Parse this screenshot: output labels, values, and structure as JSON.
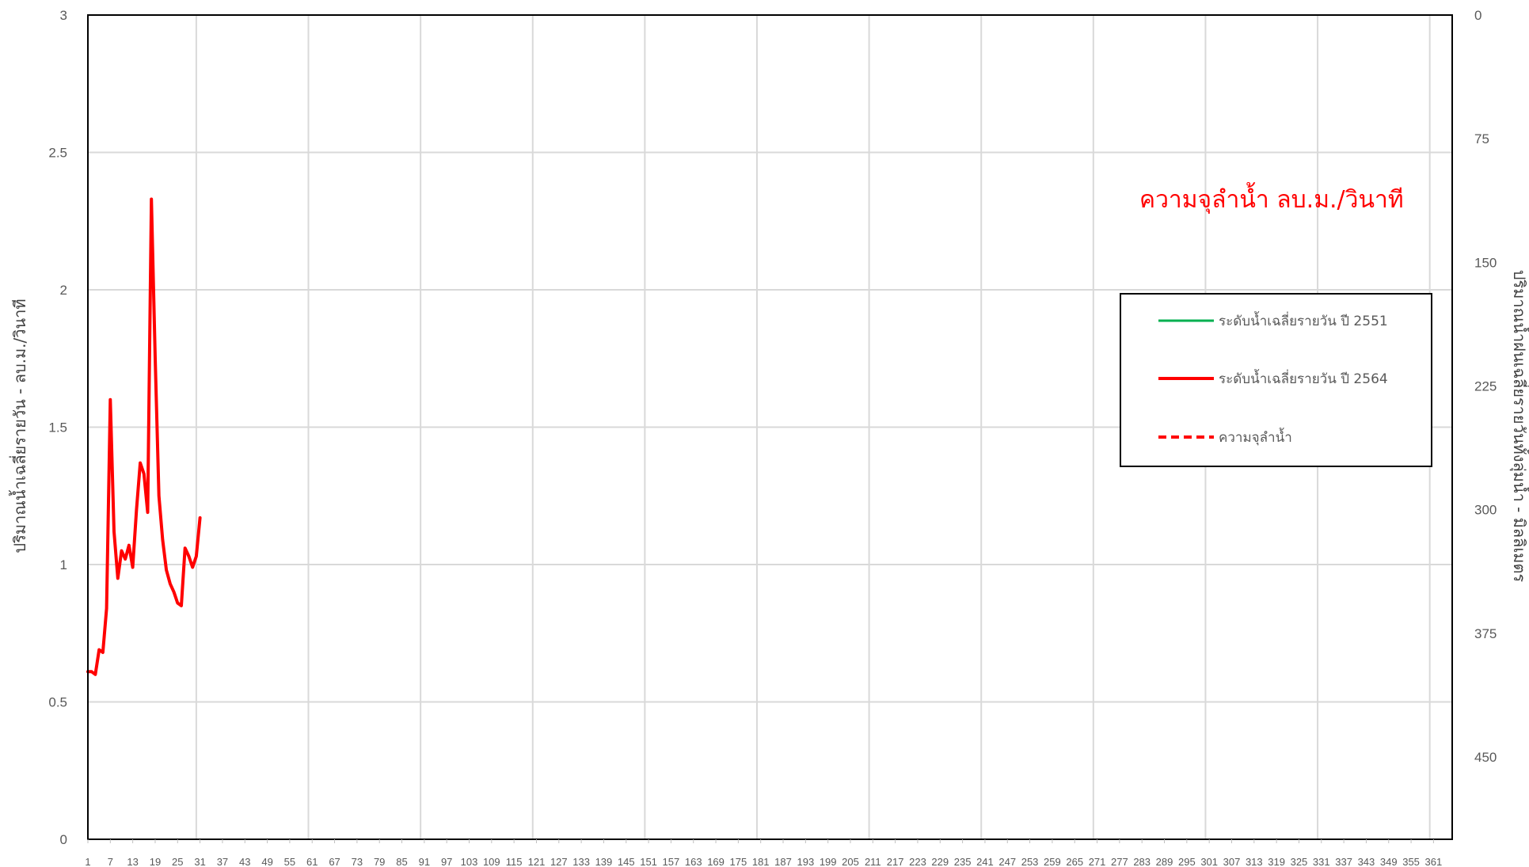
{
  "chart_data": {
    "type": "line",
    "annotation": "ความจุลำน้ำ  ลบ.ม./วินาที",
    "ylabel_left": "ปริมาณน้ำเฉลี่ยรายวัน - ลบ.ม./วินาที",
    "ylabel_right": "ปริมาณน้ำฝนเฉลี่ยรายวันทั้งลุ่มน้ำ - มิลลิเมตร",
    "ylim_left": [
      0,
      3
    ],
    "yticks_left": [
      "0",
      "0.5",
      "1",
      "1.5",
      "2",
      "2.5",
      "3"
    ],
    "ylim_right": [
      0,
      500
    ],
    "right_axis_reversed": true,
    "yticks_right": [
      "0",
      "75",
      "150",
      "225",
      "300",
      "375",
      "450"
    ],
    "xlim": [
      1,
      366
    ],
    "xticks": [
      "1",
      "7",
      "13",
      "19",
      "25",
      "31",
      "37",
      "43",
      "49",
      "55",
      "61",
      "67",
      "73",
      "79",
      "85",
      "91",
      "97",
      "103",
      "109",
      "115",
      "121",
      "127",
      "133",
      "139",
      "145",
      "151",
      "157",
      "163",
      "169",
      "175",
      "181",
      "187",
      "193",
      "199",
      "205",
      "211",
      "217",
      "223",
      "229",
      "235",
      "241",
      "247",
      "253",
      "259",
      "265",
      "271",
      "277",
      "283",
      "289",
      "295",
      "301",
      "307",
      "313",
      "319",
      "325",
      "331",
      "337",
      "343",
      "349",
      "355",
      "361"
    ],
    "grid": true,
    "legend_position": "right",
    "series": [
      {
        "name": "ระดับน้ำเฉลี่ยรายวัน ปี 2551",
        "color": "#00b050",
        "style": "solid",
        "x": [],
        "y": []
      },
      {
        "name": "ระดับน้ำเฉลี่ยรายวัน ปี 2564",
        "color": "#ff0000",
        "style": "solid",
        "x": [
          1,
          2,
          3,
          4,
          5,
          6,
          7,
          8,
          9,
          10,
          11,
          12,
          13,
          14,
          15,
          16,
          17,
          18,
          19,
          20,
          21,
          22,
          23,
          24,
          25,
          26,
          27,
          28,
          29,
          30,
          31
        ],
        "y": [
          0.61,
          0.61,
          0.6,
          0.69,
          0.68,
          0.84,
          1.6,
          1.12,
          0.95,
          1.05,
          1.02,
          1.07,
          0.99,
          1.2,
          1.37,
          1.33,
          1.19,
          2.33,
          1.75,
          1.25,
          1.09,
          0.98,
          0.93,
          0.9,
          0.86,
          0.85,
          1.06,
          1.03,
          0.99,
          1.03,
          1.17
        ]
      },
      {
        "name": "ความจุลำน้ำ",
        "color": "#ff0000",
        "style": "dashed",
        "x": [],
        "y": []
      }
    ]
  }
}
